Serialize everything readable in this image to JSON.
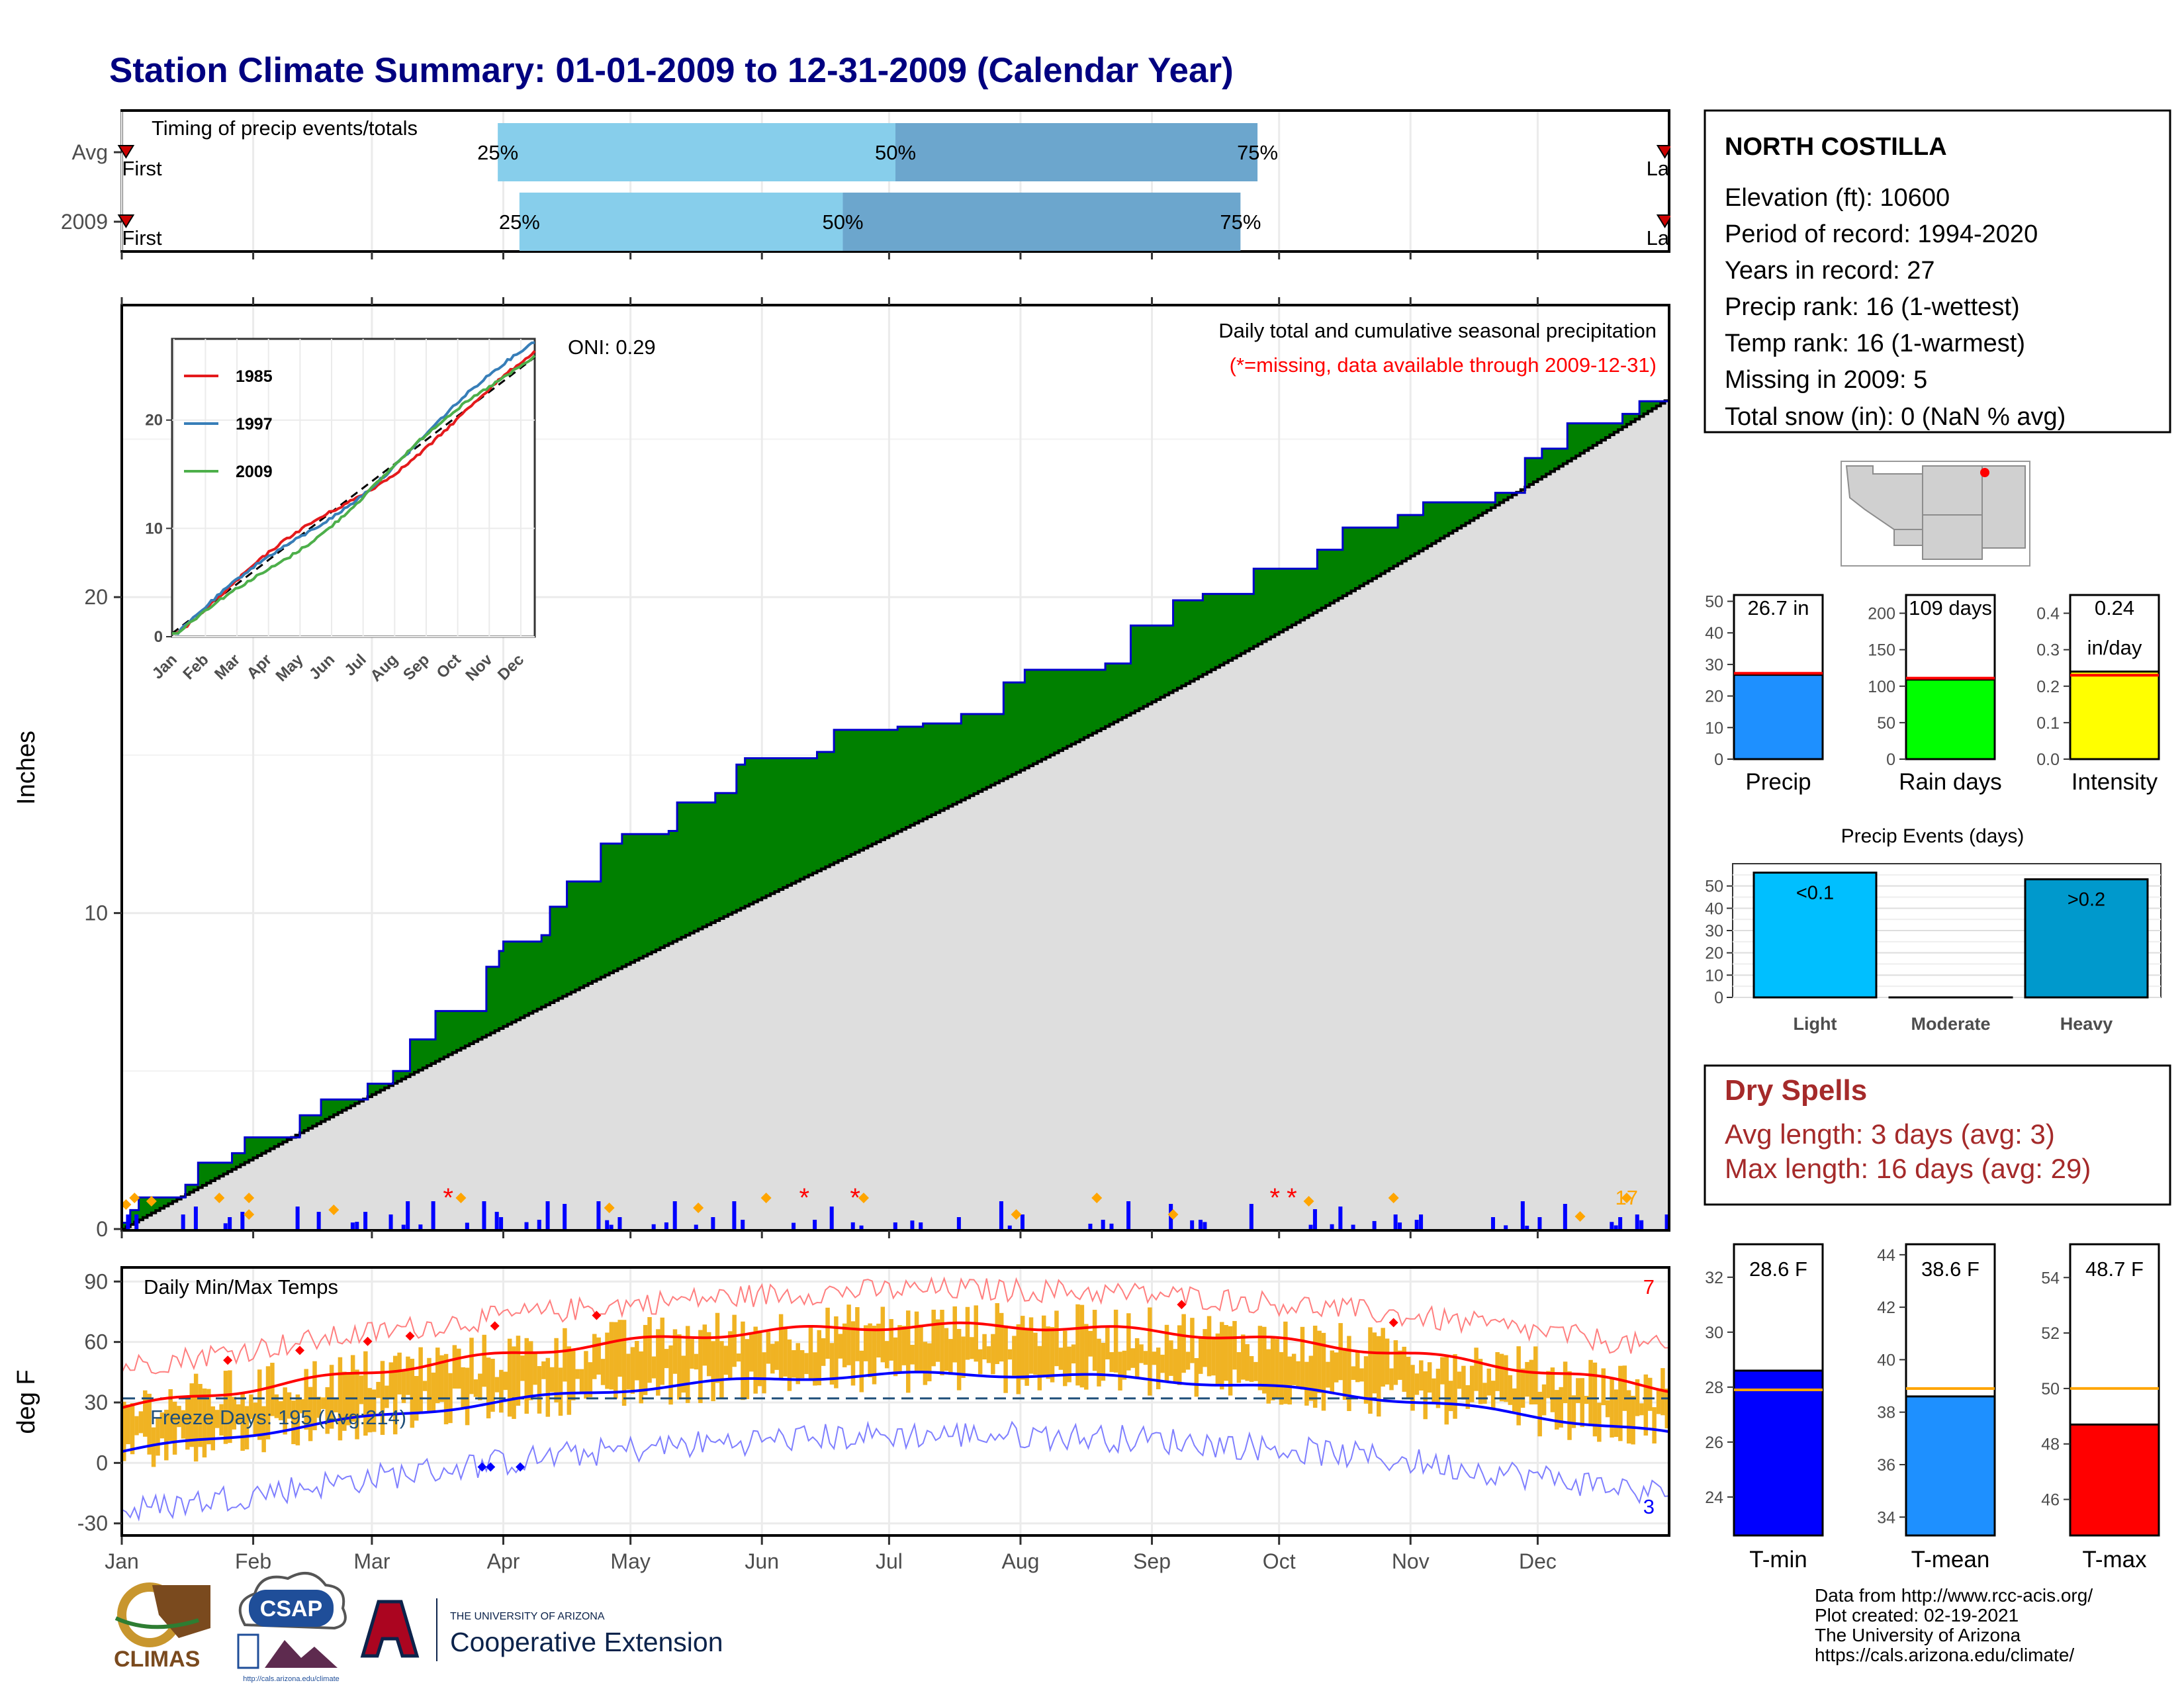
{
  "title": "Station Climate Summary: 01-01-2009 to 12-31-2009 (Calendar Year)",
  "months": [
    "Jan",
    "Feb",
    "Mar",
    "Apr",
    "May",
    "Jun",
    "Jul",
    "Aug",
    "Sep",
    "Oct",
    "Nov",
    "Dec"
  ],
  "timing": {
    "label": "Timing of precip events/totals",
    "rows": [
      {
        "name": "Avg",
        "p25": "25%",
        "p50": "50%",
        "p75": "75%",
        "first": "First",
        "last": "Last",
        "q25": 0.243,
        "q50": 0.5,
        "q75": 0.734
      },
      {
        "name": "2009",
        "p25": "25%",
        "p50": "50%",
        "p75": "75%",
        "first": "First",
        "last": "Last",
        "q25": 0.257,
        "q50": 0.466,
        "q75": 0.723
      }
    ]
  },
  "precip": {
    "ylabel": "Inches",
    "yticks": [
      0,
      10,
      20
    ],
    "ymax": 29.2,
    "oni": "ONI: 0.29",
    "label1": "Daily total and cumulative seasonal precipitation",
    "label2": "(*=missing, data available through 2009-12-31)",
    "count": "17",
    "colors": {
      "above": "#008000",
      "below": "#8B5A1A",
      "avg_fill": "#DEDEDE",
      "obs_line": "#0000CC",
      "bars": "#0000FF",
      "missing": "#FF0000",
      "events": "#FFA500"
    }
  },
  "inset": {
    "series": [
      {
        "name": "1985",
        "color": "#E41A1C"
      },
      {
        "name": "1997",
        "color": "#377EB8"
      },
      {
        "name": "2009",
        "color": "#4DAF4A"
      }
    ],
    "yticks": [
      0,
      10,
      20
    ],
    "months": [
      "Jan",
      "Feb",
      "Mar",
      "Apr",
      "May",
      "Jun",
      "Jul",
      "Aug",
      "Sep",
      "Oct",
      "Nov",
      "Dec"
    ]
  },
  "temps": {
    "ylabel": "deg F",
    "label": "Daily Min/Max Temps",
    "freeze": "Freeze Days: 195 (Avg:214)",
    "yticks": [
      -30,
      0,
      30,
      60,
      90
    ],
    "count_hot": "7",
    "count_cold": "3"
  },
  "station": {
    "name": "NORTH COSTILLA",
    "lines": [
      "Elevation (ft): 10600",
      "Period of record: 1994-2020",
      "Years in record: 27",
      "Precip rank: 16 (1-wettest)",
      "Temp rank: 16 (1-warmest)",
      "Missing in 2009: 5",
      "Total snow (in): 0 (NaN % avg)"
    ]
  },
  "summary_bars": [
    {
      "label": "Precip",
      "value": 26.7,
      "avg": 27.2,
      "text": "26.7 in",
      "color": "#1E90FF",
      "ymax": 52,
      "yticks": [
        0,
        10,
        20,
        30,
        40,
        50
      ]
    },
    {
      "label": "Rain days",
      "value": 109,
      "avg": 111,
      "text": "109 days",
      "color": "#00FF00",
      "ymax": 225,
      "yticks": [
        0,
        50,
        100,
        150,
        200
      ]
    },
    {
      "label": "Intensity",
      "value": 0.24,
      "avg": 0.23,
      "text": "0.24",
      "text2": "in/day",
      "color": "#FFFF00",
      "ymax": 0.45,
      "yticks": [
        "0.0",
        "0.1",
        "0.2",
        "0.3",
        "0.4"
      ]
    }
  ],
  "events": {
    "title": "Precip Events (days)",
    "categories": [
      "Light",
      "Moderate",
      "Heavy"
    ],
    "values": [
      56,
      0,
      53
    ],
    "labels": [
      "<0.1",
      "",
      ">0.2"
    ],
    "colors": [
      "#00BFFF",
      "#008B8B",
      "#0099CC"
    ],
    "yticks": [
      0,
      10,
      20,
      30,
      40,
      50
    ]
  },
  "dry": {
    "title": "Dry Spells",
    "avg": "Avg length: 3 days (avg: 3)",
    "max": "Max length: 16 days (avg: 29)"
  },
  "temp_bars": [
    {
      "label": "T-min",
      "value": 28.6,
      "avg": 27.9,
      "text": "28.6 F",
      "color": "#0000FF",
      "ymin": 22.6,
      "ymax": 33.2,
      "yticks": [
        24,
        26,
        28,
        30,
        32
      ]
    },
    {
      "label": "T-mean",
      "value": 38.6,
      "avg": 38.9,
      "text": "38.6 F",
      "color": "#1E90FF",
      "ymin": 33.3,
      "ymax": 44.4,
      "yticks": [
        34,
        36,
        38,
        40,
        42,
        44
      ]
    },
    {
      "label": "T-max",
      "value": 48.7,
      "avg": 50.0,
      "text": "48.7 F",
      "color": "#FF0000",
      "ymin": 44.7,
      "ymax": 55.2,
      "yticks": [
        46,
        48,
        50,
        52,
        54
      ]
    }
  ],
  "credits": [
    "Data from http://www.rcc-acis.org/",
    "Plot created: 02-19-2021",
    "The University of Arizona",
    "https://cals.arizona.edu/climate/"
  ],
  "logos": {
    "climas": "CLIMAS",
    "csap": "CSAP",
    "csap_url": "http://cals.arizona.edu/climate",
    "ua_top": "THE UNIVERSITY OF ARIZONA",
    "ua_bottom": "Cooperative Extension",
    "ua_letter": "A"
  }
}
